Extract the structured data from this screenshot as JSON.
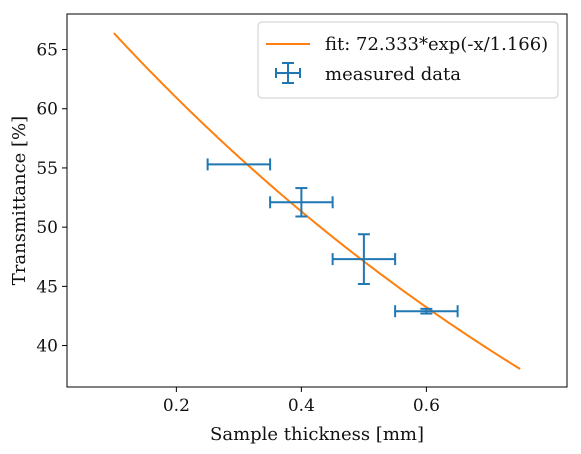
{
  "chart_data": {
    "type": "scatter",
    "xlabel": "Sample thickness [mm]",
    "ylabel": "Transmittance [%]",
    "xlim": [
      0.025,
      0.825
    ],
    "ylim": [
      36.5,
      68.0
    ],
    "x_ticks": [
      0.2,
      0.4,
      0.6
    ],
    "x_tick_labels": [
      "0.2",
      "0.4",
      "0.6"
    ],
    "y_ticks": [
      40,
      45,
      50,
      55,
      60,
      65
    ],
    "y_tick_labels": [
      "40",
      "45",
      "50",
      "55",
      "60",
      "65"
    ],
    "grid": false,
    "legend_position": "top-right",
    "series": [
      {
        "name": "fit: 72.333*exp(-x/1.166)",
        "kind": "line",
        "color": "#ff7f0e",
        "function": {
          "amplitude": 72.333,
          "decay": 1.166
        },
        "x_range": [
          0.1,
          0.75
        ]
      },
      {
        "name": "measured data",
        "kind": "errorbar",
        "color": "#1f77b4",
        "x": [
          0.3,
          0.4,
          0.5,
          0.6
        ],
        "y": [
          55.3,
          52.1,
          47.3,
          42.9
        ],
        "xerr": [
          0.05,
          0.05,
          0.05,
          0.05
        ],
        "yerr": [
          0.0,
          1.2,
          2.1,
          0.2
        ]
      }
    ]
  }
}
